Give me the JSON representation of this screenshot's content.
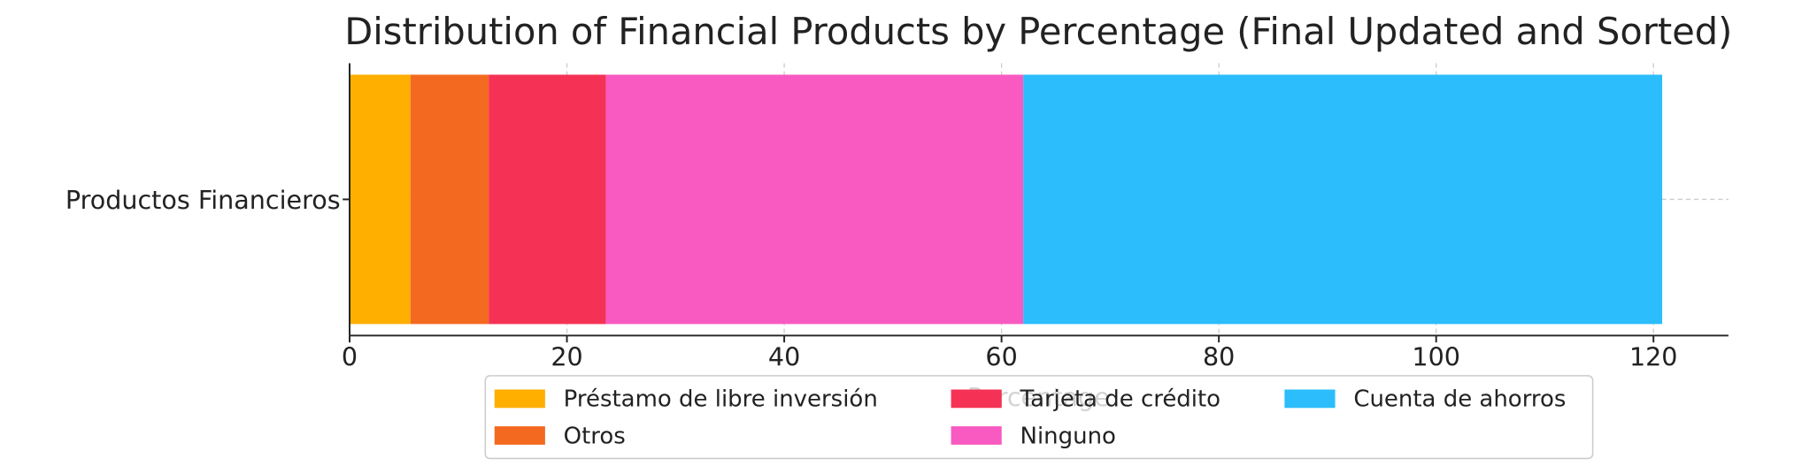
{
  "chart_data": {
    "type": "bar",
    "orientation": "horizontal",
    "stacked": true,
    "title": "Distribution of Financial Products by Percentage (Final Updated and Sorted)",
    "x_label": "Percentage",
    "categories": [
      "Productos Financieros"
    ],
    "series": [
      {
        "name": "Préstamo de libre inversión",
        "color": "#FFAF00",
        "values": [
          5.6
        ]
      },
      {
        "name": "Otros",
        "color": "#F46920",
        "values": [
          7.2
        ]
      },
      {
        "name": "Tarjeta de crédito",
        "color": "#F53255",
        "values": [
          10.8
        ]
      },
      {
        "name": "Ninguno",
        "color": "#F85AC2",
        "values": [
          38.4
        ]
      },
      {
        "name": "Cuenta de ahorros",
        "color": "#2BBDFC",
        "values": [
          58.8
        ]
      }
    ],
    "xlim": [
      0,
      126.9
    ],
    "xticks": [
      0,
      20,
      40,
      60,
      80,
      100,
      120
    ],
    "grid": true,
    "legend": "bottom"
  }
}
